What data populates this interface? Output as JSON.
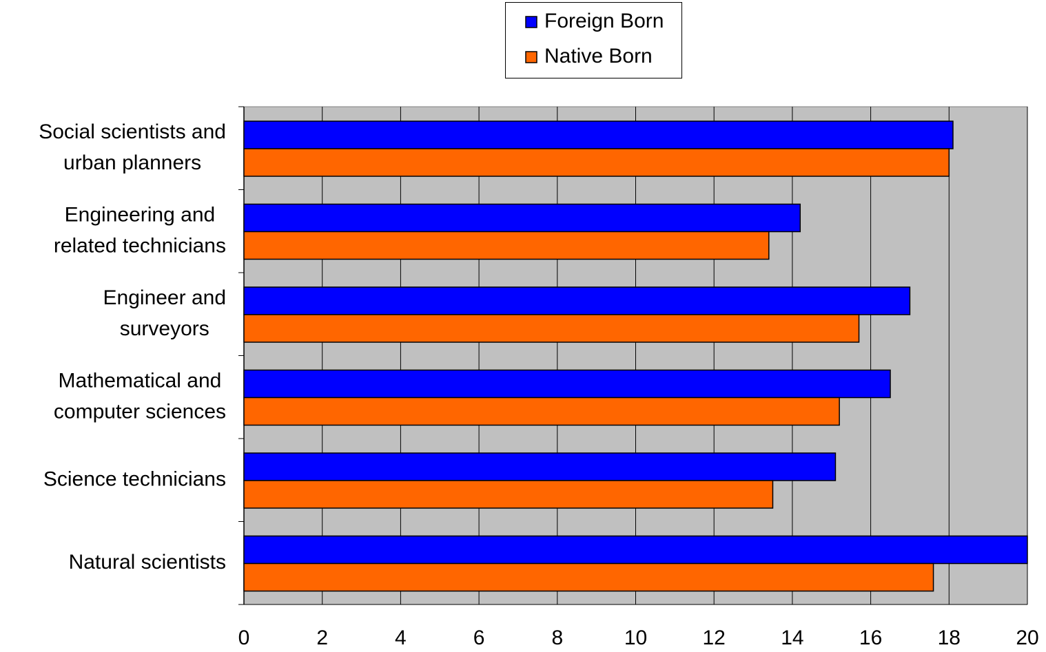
{
  "chart_data": {
    "type": "barh",
    "categories": [
      "Social scientists and\nurban planners",
      "Engineering and\nrelated technicians",
      "Engineer and\nsurveyors",
      "Mathematical and\ncomputer sciences",
      "Science technicians",
      "Natural scientists"
    ],
    "series": [
      {
        "name": "Foreign Born",
        "color": "#0000ff",
        "values": [
          18.1,
          14.2,
          17.0,
          16.5,
          15.1,
          20.0
        ]
      },
      {
        "name": "Native Born",
        "color": "#ff6600",
        "values": [
          18.0,
          13.4,
          15.7,
          15.2,
          13.5,
          17.6
        ]
      }
    ],
    "xlim": [
      0,
      20
    ],
    "xticks": [
      0,
      2,
      4,
      6,
      8,
      10,
      12,
      14,
      16,
      18,
      20
    ],
    "grid": true
  }
}
